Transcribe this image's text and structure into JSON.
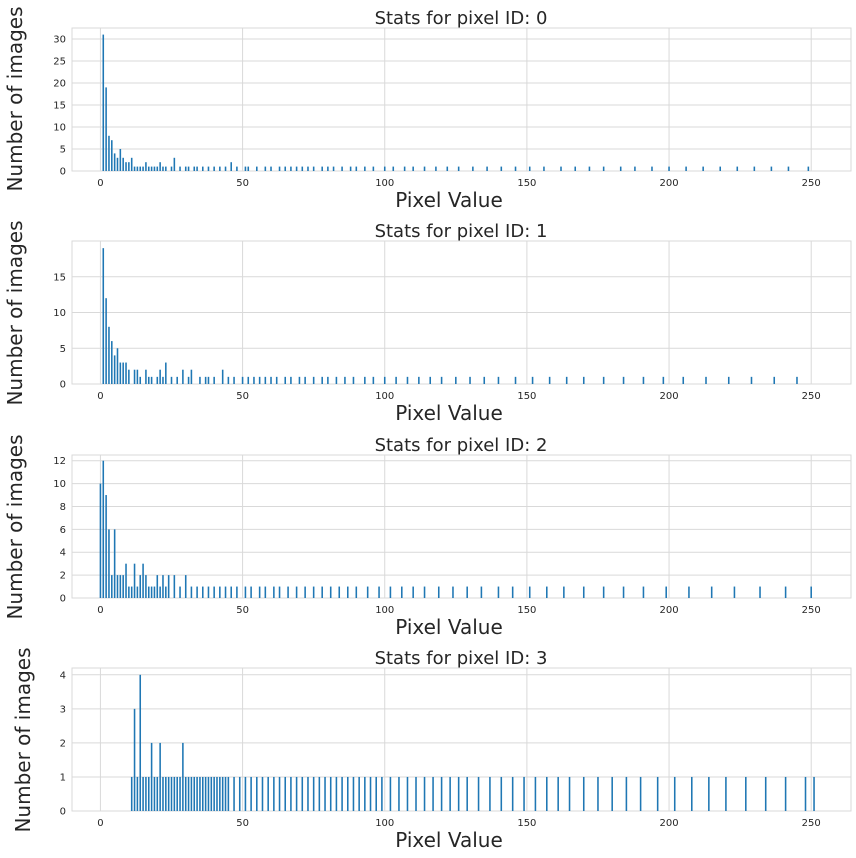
{
  "colors": {
    "bar": "#1f77b4",
    "grid": "#d9d9d9",
    "text": "#262626"
  },
  "chart_data": [
    {
      "type": "bar",
      "title": "Stats for pixel ID: 0",
      "xlabel": "Pixel Value",
      "ylabel": "Number of images",
      "xlim": [
        -10,
        264
      ],
      "ylim": [
        0,
        32.5
      ],
      "xticks": [
        0,
        50,
        100,
        150,
        200,
        250
      ],
      "yticks": [
        0,
        5,
        10,
        15,
        20,
        25,
        30
      ],
      "grid": true,
      "x": [
        1,
        2,
        3,
        4,
        5,
        6,
        7,
        8,
        9,
        10,
        11,
        12,
        13,
        14,
        15,
        16,
        17,
        18,
        19,
        20,
        21,
        22,
        23,
        25,
        26,
        28,
        30,
        31,
        33,
        34,
        36,
        38,
        40,
        42,
        44,
        46,
        48,
        51,
        52,
        55,
        58,
        60,
        63,
        65,
        67,
        69,
        71,
        73,
        75,
        78,
        80,
        82,
        85,
        88,
        90,
        93,
        96,
        100,
        103,
        107,
        110,
        114,
        118,
        122,
        126,
        131,
        136,
        141,
        146,
        151,
        156,
        162,
        167,
        172,
        177,
        183,
        188,
        194,
        200,
        206,
        212,
        218,
        224,
        230,
        236,
        242,
        249
      ],
      "values": [
        31,
        19,
        8,
        7,
        4,
        3,
        5,
        3,
        2,
        2,
        3,
        1,
        1,
        1,
        1,
        2,
        1,
        1,
        1,
        1,
        2,
        1,
        1,
        1,
        3,
        1,
        1,
        1,
        1,
        1,
        1,
        1,
        1,
        1,
        1,
        2,
        1,
        1,
        1,
        1,
        1,
        1,
        1,
        1,
        1,
        1,
        1,
        1,
        1,
        1,
        1,
        1,
        1,
        1,
        1,
        1,
        1,
        1,
        1,
        1,
        1,
        1,
        1,
        1,
        1,
        1,
        1,
        1,
        1,
        1,
        1,
        1,
        1,
        1,
        1,
        1,
        1,
        1,
        1,
        1,
        1,
        1,
        1,
        1,
        1,
        1,
        1
      ]
    },
    {
      "type": "bar",
      "title": "Stats for pixel ID: 1",
      "xlabel": "Pixel Value",
      "ylabel": "Number of images",
      "xlim": [
        -10,
        264
      ],
      "ylim": [
        0,
        20
      ],
      "xticks": [
        0,
        50,
        100,
        150,
        200,
        250
      ],
      "yticks": [
        0,
        5,
        10,
        15
      ],
      "grid": true,
      "x": [
        1,
        2,
        3,
        4,
        5,
        6,
        7,
        8,
        9,
        10,
        12,
        13,
        14,
        16,
        17,
        18,
        20,
        21,
        22,
        23,
        25,
        27,
        29,
        31,
        32,
        35,
        37,
        38,
        40,
        43,
        45,
        47,
        50,
        52,
        54,
        56,
        58,
        60,
        62,
        65,
        67,
        70,
        72,
        75,
        78,
        80,
        83,
        86,
        89,
        93,
        96,
        100,
        104,
        108,
        112,
        116,
        120,
        125,
        130,
        135,
        140,
        146,
        152,
        158,
        164,
        170,
        177,
        184,
        191,
        198,
        205,
        213,
        221,
        229,
        237,
        245
      ],
      "values": [
        19,
        12,
        8,
        6,
        4,
        5,
        3,
        3,
        3,
        2,
        2,
        2,
        1,
        2,
        1,
        1,
        1,
        2,
        1,
        3,
        1,
        1,
        2,
        1,
        2,
        1,
        1,
        1,
        1,
        2,
        1,
        1,
        1,
        1,
        1,
        1,
        1,
        1,
        1,
        1,
        1,
        1,
        1,
        1,
        1,
        1,
        1,
        1,
        1,
        1,
        1,
        1,
        1,
        1,
        1,
        1,
        1,
        1,
        1,
        1,
        1,
        1,
        1,
        1,
        1,
        1,
        1,
        1,
        1,
        1,
        1,
        1,
        1,
        1,
        1,
        1
      ]
    },
    {
      "type": "bar",
      "title": "Stats for pixel ID: 2",
      "xlabel": "Pixel Value",
      "ylabel": "Number of images",
      "xlim": [
        -10,
        264
      ],
      "ylim": [
        0,
        12.5
      ],
      "xticks": [
        0,
        50,
        100,
        150,
        200,
        250
      ],
      "yticks": [
        0,
        2,
        4,
        6,
        8,
        10,
        12
      ],
      "grid": true,
      "x": [
        0,
        1,
        2,
        3,
        4,
        5,
        6,
        7,
        8,
        9,
        10,
        11,
        12,
        13,
        14,
        15,
        16,
        17,
        18,
        19,
        20,
        21,
        22,
        23,
        24,
        26,
        28,
        30,
        32,
        34,
        36,
        38,
        40,
        42,
        44,
        46,
        48,
        51,
        53,
        56,
        58,
        61,
        63,
        66,
        69,
        72,
        75,
        78,
        81,
        84,
        87,
        90,
        94,
        98,
        102,
        106,
        110,
        114,
        119,
        124,
        129,
        134,
        140,
        145,
        151,
        157,
        163,
        170,
        177,
        184,
        191,
        199,
        207,
        215,
        223,
        232,
        241,
        250
      ],
      "values": [
        10,
        12,
        9,
        6,
        2,
        6,
        2,
        2,
        2,
        3,
        1,
        1,
        3,
        1,
        2,
        3,
        2,
        1,
        1,
        1,
        2,
        1,
        2,
        1,
        2,
        2,
        1,
        2,
        1,
        1,
        1,
        1,
        1,
        1,
        1,
        1,
        1,
        1,
        1,
        1,
        1,
        1,
        1,
        1,
        1,
        1,
        1,
        1,
        1,
        1,
        1,
        1,
        1,
        1,
        1,
        1,
        1,
        1,
        1,
        1,
        1,
        1,
        1,
        1,
        1,
        1,
        1,
        1,
        1,
        1,
        1,
        1,
        1,
        1,
        1,
        1,
        1,
        1
      ]
    },
    {
      "type": "bar",
      "title": "Stats for pixel ID: 3",
      "xlabel": "Pixel Value",
      "ylabel": "Number of images",
      "xlim": [
        -10,
        264
      ],
      "ylim": [
        0,
        4.2
      ],
      "xticks": [
        0,
        50,
        100,
        150,
        200,
        250
      ],
      "yticks": [
        0,
        1,
        2,
        3,
        4
      ],
      "grid": true,
      "x": [
        11,
        12,
        13,
        14,
        15,
        16,
        17,
        18,
        19,
        20,
        21,
        22,
        23,
        24,
        25,
        26,
        27,
        28,
        29,
        30,
        31,
        32,
        33,
        34,
        35,
        36,
        37,
        38,
        39,
        40,
        41,
        42,
        43,
        44,
        45,
        47,
        49,
        51,
        53,
        55,
        57,
        59,
        61,
        63,
        65,
        67,
        69,
        71,
        73,
        75,
        77,
        79,
        81,
        83,
        85,
        87,
        89,
        91,
        93,
        95,
        97,
        99,
        102,
        105,
        108,
        111,
        114,
        117,
        120,
        123,
        126,
        129,
        133,
        137,
        141,
        145,
        149,
        153,
        157,
        161,
        165,
        170,
        175,
        180,
        185,
        190,
        196,
        202,
        208,
        214,
        220,
        227,
        234,
        241,
        248,
        251
      ],
      "values": [
        1,
        3,
        1,
        4,
        1,
        1,
        1,
        2,
        1,
        1,
        2,
        1,
        1,
        1,
        1,
        1,
        1,
        1,
        2,
        1,
        1,
        1,
        1,
        1,
        1,
        1,
        1,
        1,
        1,
        1,
        1,
        1,
        1,
        1,
        1,
        1,
        1,
        1,
        1,
        1,
        1,
        1,
        1,
        1,
        1,
        1,
        1,
        1,
        1,
        1,
        1,
        1,
        1,
        1,
        1,
        1,
        1,
        1,
        1,
        1,
        1,
        1,
        1,
        1,
        1,
        1,
        1,
        1,
        1,
        1,
        1,
        1,
        1,
        1,
        1,
        1,
        1,
        1,
        1,
        1,
        1,
        1,
        1,
        1,
        1,
        1,
        1,
        1,
        1,
        1,
        1,
        1,
        1,
        1,
        1,
        1
      ]
    }
  ]
}
